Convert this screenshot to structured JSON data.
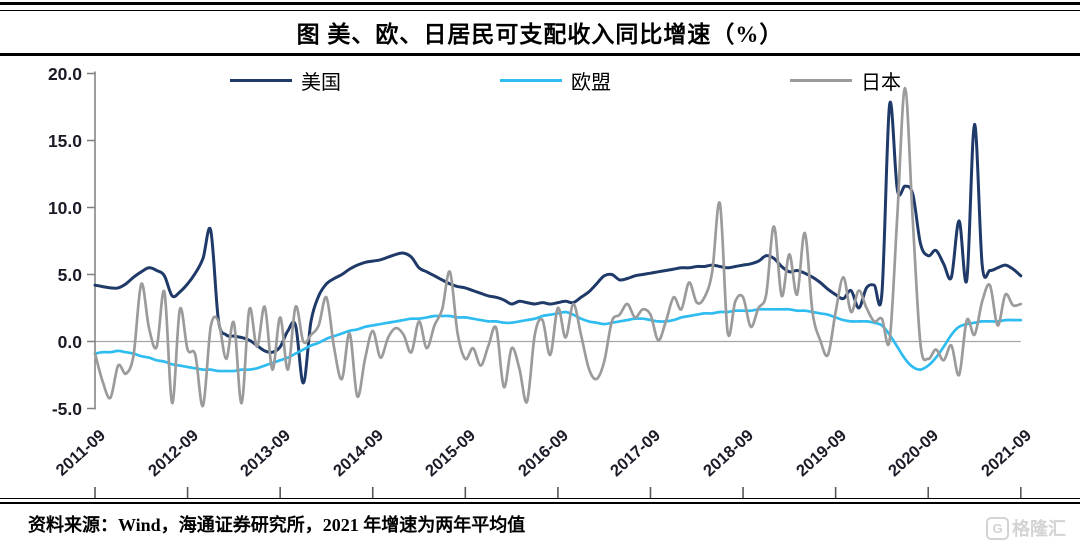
{
  "title": "图 美、欧、日居民可支配收入同比增速（%）",
  "source_note": "资料来源：Wind，海通证券研究所，2021 年增速为两年平均值",
  "watermark": {
    "icon_letter": "G",
    "text": "格隆汇"
  },
  "chart_data": {
    "type": "line",
    "title": "图 美、欧、日居民可支配收入同比增速（%）",
    "x_unit": "month",
    "x_start": "2011-09",
    "x_end": "2021-09",
    "x_tick_labels": [
      "2011-09",
      "2012-09",
      "2013-09",
      "2014-09",
      "2015-09",
      "2016-09",
      "2017-09",
      "2018-09",
      "2019-09",
      "2020-09",
      "2021-09"
    ],
    "y_tick_labels": [
      "20.0",
      "15.0",
      "10.0",
      "5.0",
      "0.0",
      "-5.0"
    ],
    "y_ticks": [
      20,
      15,
      10,
      5,
      0,
      -5
    ],
    "ylim": [
      -5,
      20
    ],
    "grid": "zero-line-only",
    "legend_position": "top",
    "axis_color": "#7f7f7f",
    "zero_line_color": "#a6a6a6",
    "series": [
      {
        "name": "美国",
        "color": "#1f3a68",
        "stroke_width": 3,
        "values": [
          4.2,
          4.1,
          4.0,
          4.0,
          4.3,
          4.8,
          5.2,
          5.5,
          5.3,
          4.9,
          3.4,
          3.7,
          4.3,
          5.1,
          6.2,
          8.3,
          1.6,
          0.5,
          0.4,
          0.3,
          0.1,
          -0.3,
          -0.7,
          -0.8,
          -0.4,
          0.8,
          1.2,
          -3.1,
          1.5,
          3.4,
          4.3,
          4.7,
          5.0,
          5.4,
          5.7,
          5.9,
          6.0,
          6.1,
          6.3,
          6.5,
          6.6,
          6.3,
          5.5,
          5.2,
          4.9,
          4.6,
          4.3,
          4.1,
          4.0,
          3.8,
          3.6,
          3.4,
          3.3,
          3.1,
          2.8,
          3.0,
          2.9,
          2.8,
          2.9,
          2.8,
          2.9,
          3.0,
          2.9,
          3.3,
          3.7,
          4.3,
          4.9,
          5.0,
          4.6,
          4.7,
          4.9,
          5.0,
          5.1,
          5.2,
          5.3,
          5.4,
          5.5,
          5.5,
          5.6,
          5.6,
          5.7,
          5.6,
          5.5,
          5.6,
          5.7,
          5.8,
          6.0,
          6.4,
          6.2,
          5.6,
          5.2,
          5.3,
          5.1,
          4.8,
          4.4,
          3.9,
          3.5,
          3.2,
          3.8,
          2.5,
          4.0,
          4.2,
          3.6,
          17.7,
          11.3,
          11.6,
          11.0,
          7.3,
          6.4,
          6.8,
          5.8,
          4.8,
          9.0,
          4.6,
          16.2,
          5.7,
          5.3,
          5.5,
          5.7,
          5.4,
          4.9
        ]
      },
      {
        "name": "欧盟",
        "color": "#2fbcf0",
        "stroke_width": 2.7,
        "values": [
          -0.9,
          -0.8,
          -0.8,
          -0.7,
          -0.8,
          -0.9,
          -1.1,
          -1.2,
          -1.4,
          -1.5,
          -1.7,
          -1.8,
          -1.9,
          -2.0,
          -2.1,
          -2.1,
          -2.2,
          -2.2,
          -2.2,
          -2.1,
          -2.1,
          -2.0,
          -1.8,
          -1.6,
          -1.4,
          -1.2,
          -0.9,
          -0.6,
          -0.3,
          -0.1,
          0.2,
          0.4,
          0.6,
          0.8,
          0.9,
          1.1,
          1.2,
          1.3,
          1.4,
          1.5,
          1.6,
          1.7,
          1.7,
          1.8,
          1.9,
          1.9,
          1.9,
          1.8,
          1.8,
          1.7,
          1.6,
          1.5,
          1.5,
          1.4,
          1.4,
          1.5,
          1.6,
          1.7,
          1.9,
          2.0,
          2.1,
          2.2,
          2.0,
          1.7,
          1.5,
          1.4,
          1.3,
          1.4,
          1.5,
          1.6,
          1.7,
          1.7,
          1.6,
          1.5,
          1.5,
          1.6,
          1.8,
          1.9,
          2.0,
          2.1,
          2.1,
          2.2,
          2.2,
          2.3,
          2.3,
          2.3,
          2.4,
          2.4,
          2.4,
          2.4,
          2.4,
          2.3,
          2.3,
          2.2,
          2.1,
          2.0,
          1.8,
          1.6,
          1.5,
          1.5,
          1.5,
          1.4,
          1.2,
          0.5,
          -0.4,
          -1.3,
          -1.9,
          -2.1,
          -1.8,
          -1.2,
          -0.4,
          0.5,
          1.1,
          1.3,
          1.4,
          1.5,
          1.5,
          1.5,
          1.6,
          1.6,
          1.6
        ]
      },
      {
        "name": "日本",
        "color": "#9b9b9b",
        "stroke_width": 2.7,
        "values": [
          -0.9,
          -3.0,
          -4.2,
          -1.8,
          -2.4,
          -1.0,
          4.3,
          1.0,
          -0.4,
          3.7,
          -4.6,
          2.4,
          -0.6,
          -1.0,
          -4.8,
          1.1,
          1.5,
          -1.3,
          1.4,
          -4.6,
          2.4,
          -0.4,
          2.6,
          -2.1,
          1.8,
          -2.1,
          2.6,
          0.0,
          0.5,
          1.2,
          3.3,
          -0.5,
          -2.8,
          0.6,
          -4.1,
          -1.3,
          0.8,
          -1.2,
          0.3,
          1.0,
          0.5,
          -0.8,
          1.5,
          -0.5,
          1.2,
          2.4,
          5.2,
          0.6,
          -1.3,
          -0.5,
          -1.8,
          -0.3,
          1.0,
          -3.4,
          -0.5,
          -2.0,
          -4.5,
          0.5,
          1.6,
          -1.0,
          2.5,
          0.3,
          2.8,
          0.5,
          -2.0,
          -2.8,
          -1.5,
          1.5,
          2.0,
          2.8,
          1.8,
          2.4,
          2.0,
          0.1,
          1.5,
          3.3,
          2.4,
          4.4,
          2.9,
          3.3,
          5.2,
          10.3,
          0.7,
          3.0,
          3.3,
          1.1,
          2.5,
          3.5,
          8.6,
          3.4,
          6.5,
          3.5,
          8.1,
          2.2,
          0.1,
          -1.0,
          2.2,
          4.8,
          2.2,
          3.8,
          2.5,
          1.5,
          1.7,
          0.1,
          9.5,
          18.9,
          9.0,
          -0.2,
          -1.3,
          -0.6,
          -1.4,
          -0.3,
          -2.5,
          1.6,
          0.5,
          3.0,
          4.2,
          1.2,
          3.5,
          2.7,
          2.8
        ]
      }
    ]
  }
}
